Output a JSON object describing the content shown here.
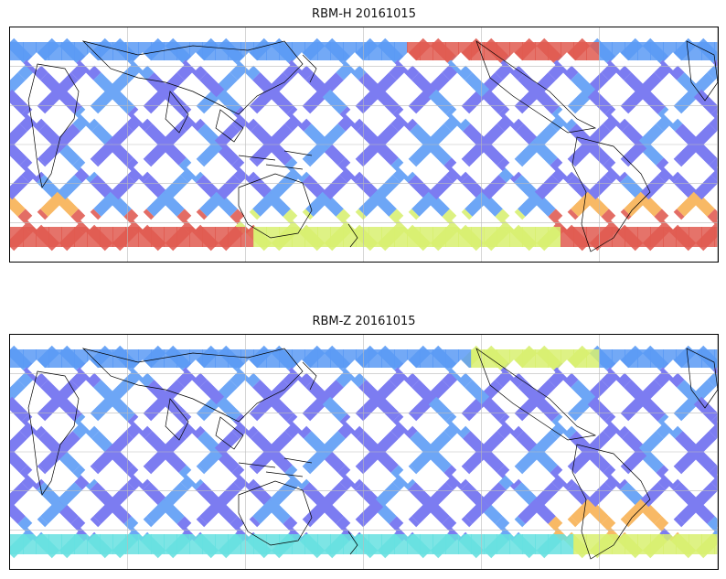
{
  "panels": [
    {
      "title": "RBM-H 20161015",
      "variant": "H",
      "meridians": 6,
      "parallels": 5
    },
    {
      "title": "RBM-Z 20161015",
      "variant": "Z",
      "meridians": 6,
      "parallels": 5
    }
  ],
  "colors": {
    "low": "#6a6af0",
    "low_mid": "#5a9af5",
    "mid": "#66e0e0",
    "mid_high": "#d8f070",
    "high_mid": "#f8b050",
    "high": "#e05a50",
    "coast": "#000000",
    "grid": "#bbbbbb"
  }
}
